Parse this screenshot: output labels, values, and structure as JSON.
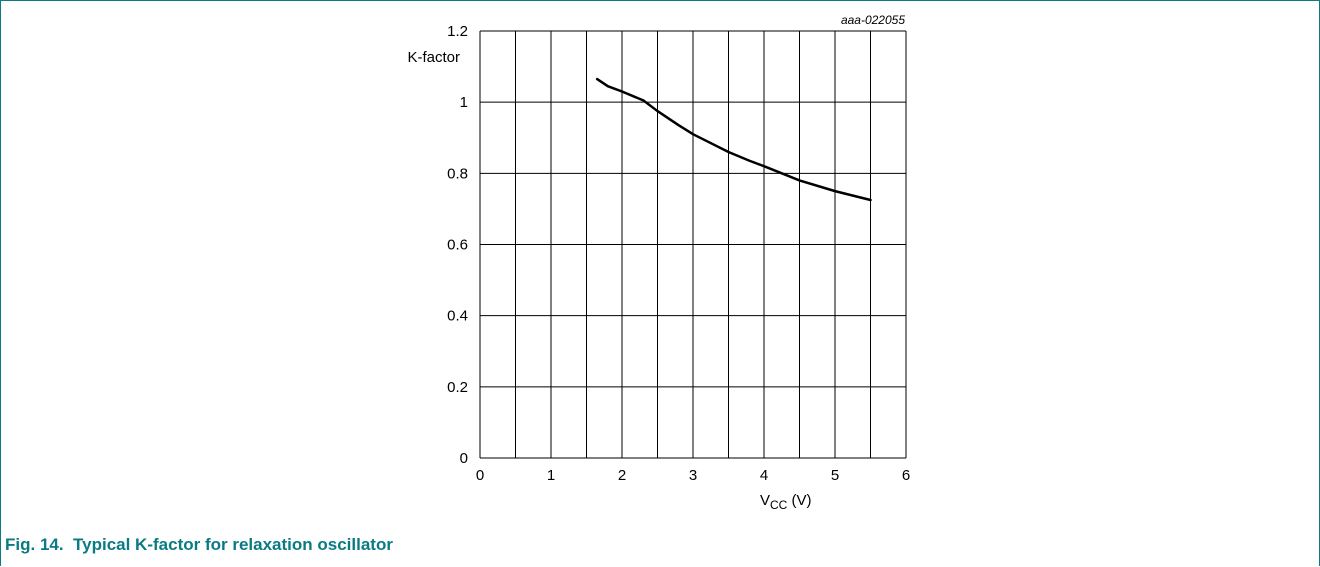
{
  "figure": {
    "code": "aaa-022055",
    "caption": "Fig. 14.  Typical K-factor for relaxation oscillator"
  },
  "chart_data": {
    "type": "line",
    "ylabel": "K-factor",
    "xlabel_main": "V",
    "xlabel_sub": "CC",
    "xlabel_unit": " (V)",
    "xlim": [
      0,
      6
    ],
    "ylim": [
      0,
      1.2
    ],
    "xticks": [
      "0",
      "1",
      "2",
      "3",
      "4",
      "5",
      "6"
    ],
    "yticks": [
      "0",
      "0.2",
      "0.4",
      "0.6",
      "0.8",
      "1",
      "1.2"
    ],
    "grid": true,
    "series": [
      {
        "x": [
          1.65,
          1.8,
          2.0,
          2.3,
          2.5,
          2.8,
          3.0,
          3.2,
          3.5,
          3.8,
          4.0,
          4.5,
          5.0,
          5.5
        ],
        "y": [
          1.065,
          1.045,
          1.03,
          1.005,
          0.975,
          0.935,
          0.91,
          0.89,
          0.86,
          0.835,
          0.82,
          0.78,
          0.75,
          0.725
        ]
      }
    ],
    "colors": {
      "line": "#000000",
      "grid": "#000000",
      "caption": "#0a7b83"
    }
  }
}
